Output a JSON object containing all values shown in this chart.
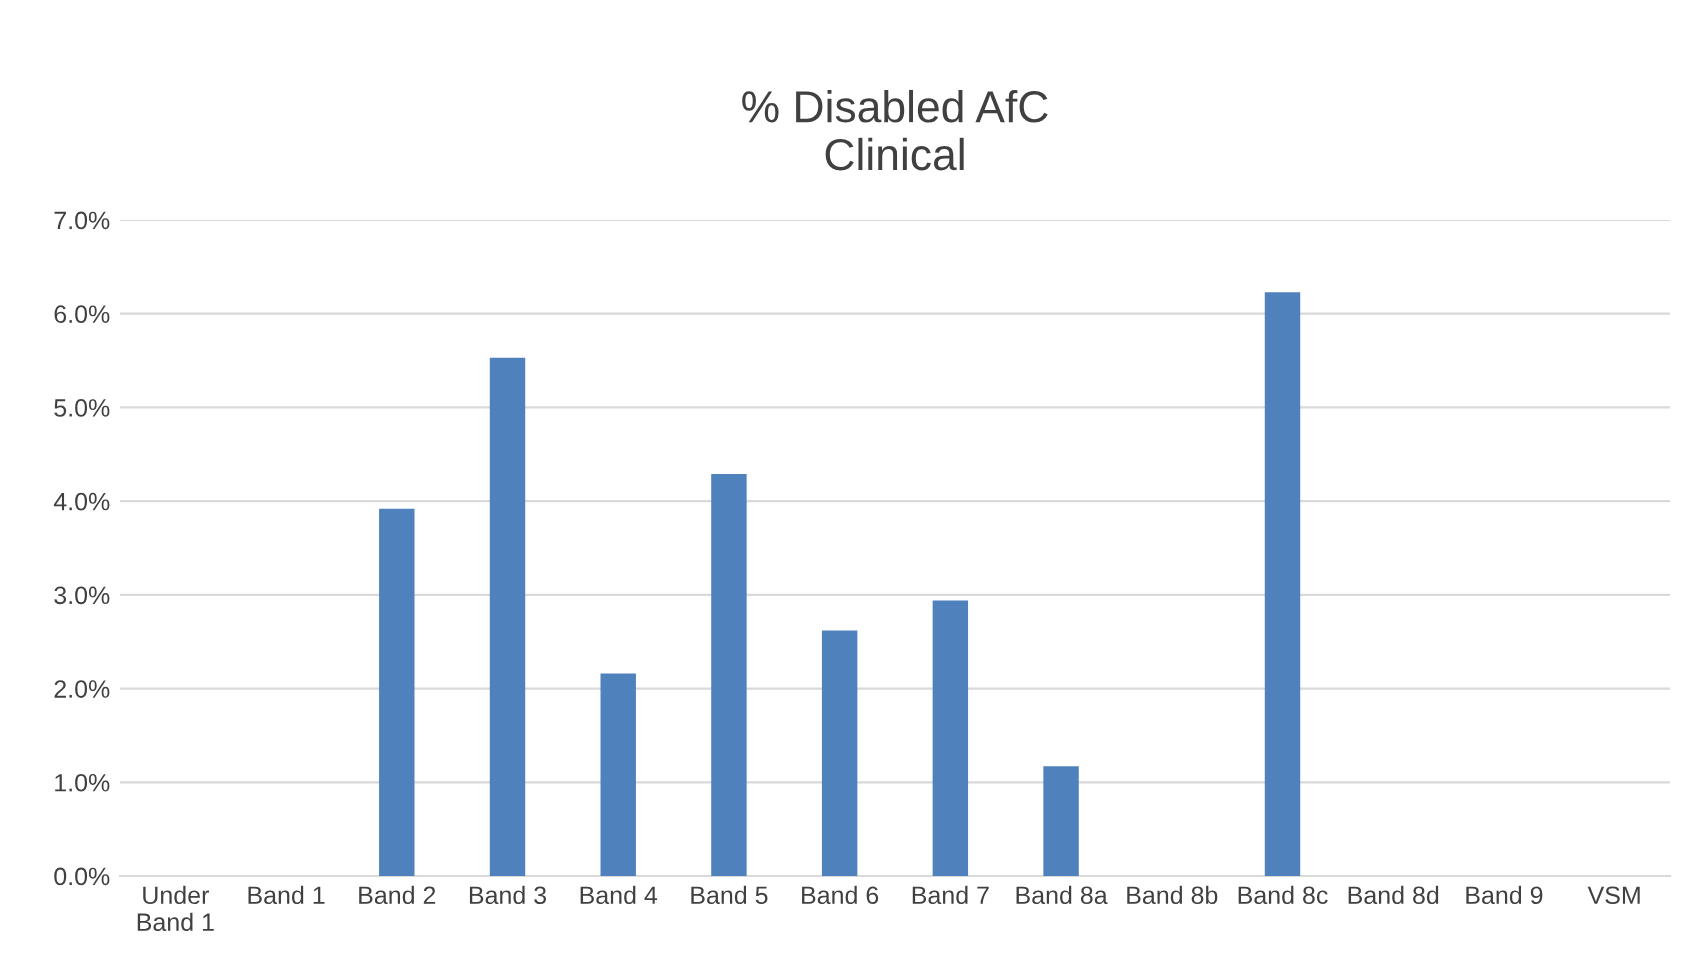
{
  "chart_data": {
    "type": "bar",
    "title": "% Disabled AfC\nClinical",
    "categories": [
      "Under\nBand 1",
      "Band 1",
      "Band 2",
      "Band 3",
      "Band 4",
      "Band 5",
      "Band 6",
      "Band 7",
      "Band 8a",
      "Band 8b",
      "Band 8c",
      "Band 8d",
      "Band 9",
      "VSM"
    ],
    "values": [
      0,
      0,
      3.92,
      5.53,
      2.16,
      4.29,
      2.62,
      2.94,
      1.17,
      0,
      6.23,
      0,
      0,
      0
    ],
    "color": "#4f81bd",
    "ylim": [
      0,
      7
    ],
    "yticks": [
      {
        "value": 0,
        "label": "0.0%"
      },
      {
        "value": 1,
        "label": "1.0%"
      },
      {
        "value": 2,
        "label": "2.0%"
      },
      {
        "value": 3,
        "label": "3.0%"
      },
      {
        "value": 4,
        "label": "4.0%"
      },
      {
        "value": 5,
        "label": "5.0%"
      },
      {
        "value": 6,
        "label": "6.0%"
      },
      {
        "value": 7,
        "label": "7.0%"
      }
    ],
    "grid": "y"
  }
}
